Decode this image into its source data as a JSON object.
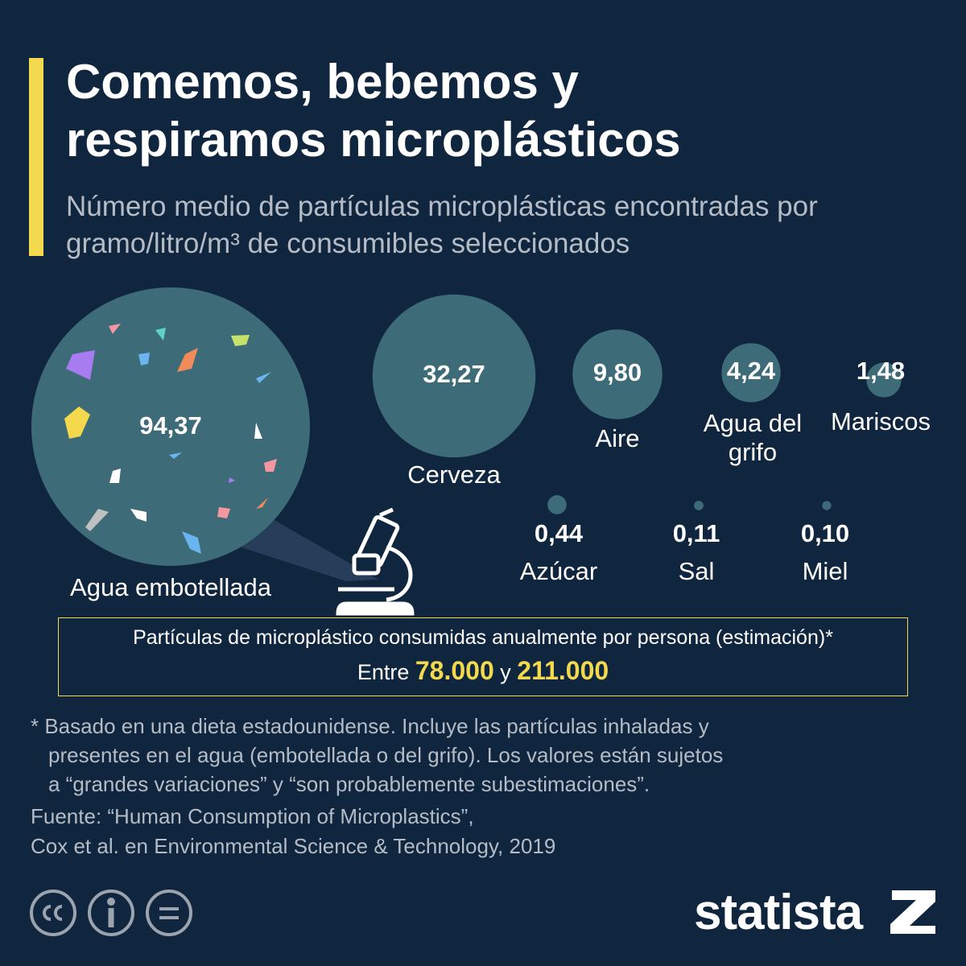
{
  "chart_data": {
    "type": "bubble",
    "title": "Comemos, bebemos y respiramos microplásticos",
    "subtitle": "Número medio de partículas microplásticas encontradas por gramo/litro/m³ de consumibles seleccionados",
    "categories": [
      "Agua embotellada",
      "Cerveza",
      "Aire",
      "Agua del grifo",
      "Mariscos",
      "Azúcar",
      "Sal",
      "Miel"
    ],
    "values": [
      94.37,
      32.27,
      9.8,
      4.24,
      1.48,
      0.44,
      0.11,
      0.1
    ],
    "value_labels": [
      "94,37",
      "32,27",
      "9,80",
      "4,24",
      "1,48",
      "0,44",
      "0,11",
      "0,10"
    ],
    "color": "#3e6b78"
  },
  "annotation": {
    "heading": "Partículas de microplástico consumidas anualmente por persona (estimación)*",
    "prefix": "Entre",
    "low": "78.000",
    "joiner": "y",
    "high": "211.000"
  },
  "footnote": [
    "* Basado en una dieta estadounidense. Incluye las partículas inhaladas y",
    "presentes en el agua (embotellada o del grifo). Los valores están sujetos",
    "a “grandes variaciones” y “son probablemente subestimaciones”."
  ],
  "source": [
    "Fuente: “Human Consumption of Microplastics”,",
    "Cox et al. en Environmental Science & Technology, 2019"
  ],
  "brand": "statista"
}
